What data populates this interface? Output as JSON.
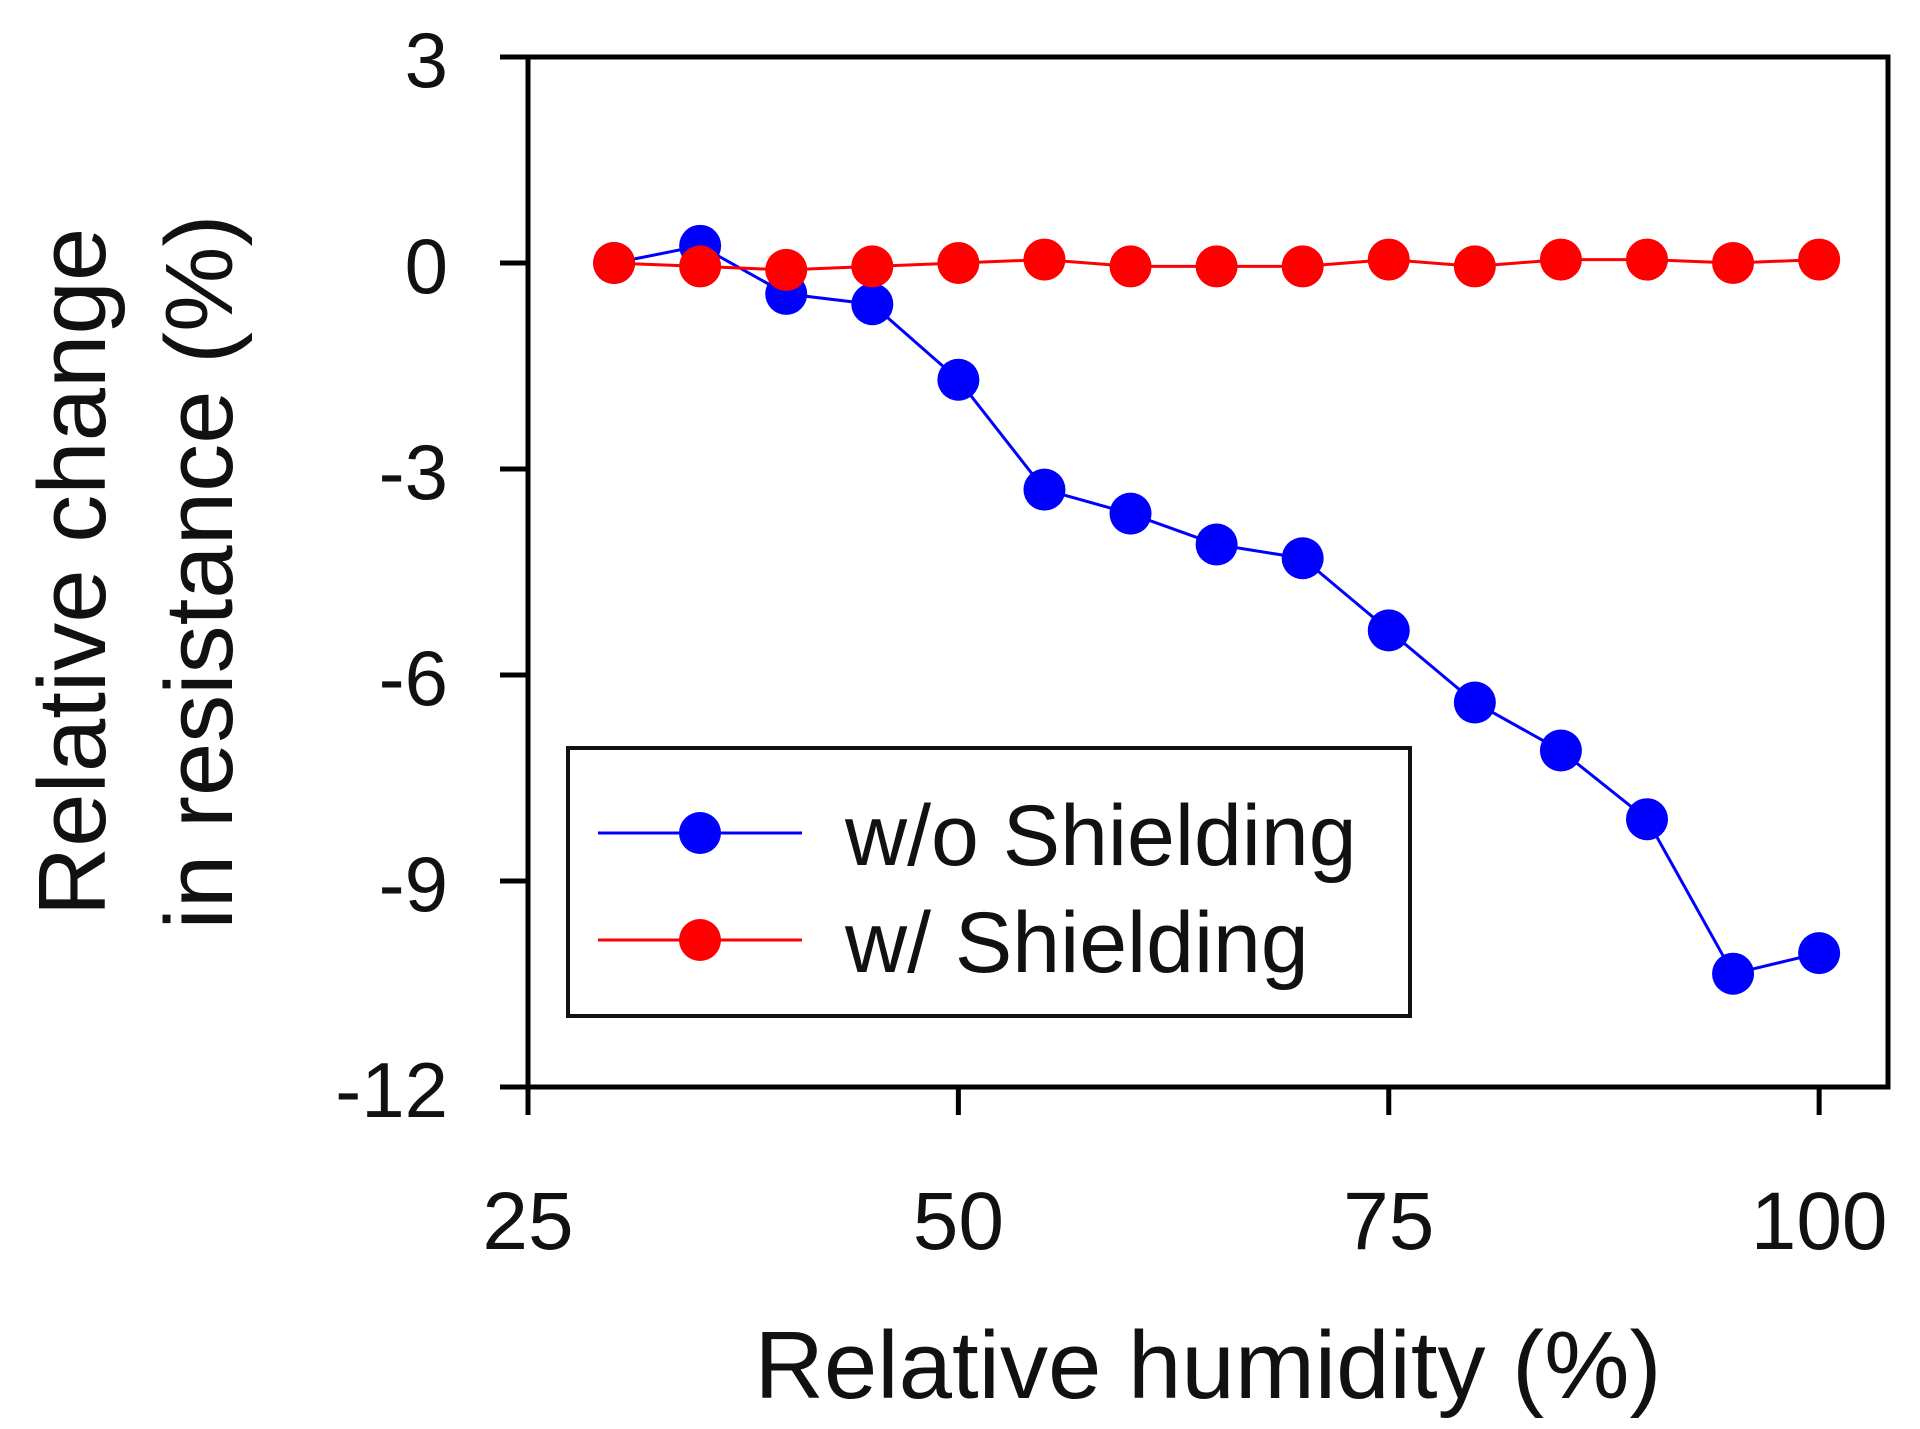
{
  "chart_data": {
    "type": "line",
    "title": "",
    "xlabel": "Relative humidity (%)",
    "ylabel_lines": [
      "Relative change",
      "in resistance (%)"
    ],
    "xlim": [
      25,
      104
    ],
    "ylim": [
      -12,
      3
    ],
    "xticks": [
      25,
      50,
      75,
      100
    ],
    "yticks": [
      3,
      0,
      -3,
      -6,
      -9,
      -12
    ],
    "xtick_labels": [
      "25",
      "50",
      "75",
      "100"
    ],
    "ytick_labels": [
      "3",
      "0",
      "-3",
      "-6",
      "-9",
      "-12"
    ],
    "grid": false,
    "legend_position": "lower-left",
    "series": [
      {
        "name": "w/o Shielding",
        "color": "#0000ff",
        "x": [
          30,
          35,
          40,
          45,
          50,
          55,
          60,
          65,
          70,
          75,
          80,
          85,
          90,
          95,
          100
        ],
        "y": [
          0,
          0.25,
          -0.45,
          -0.6,
          -1.7,
          -3.3,
          -3.65,
          -4.1,
          -4.3,
          -5.35,
          -6.4,
          -7.1,
          -8.1,
          -10.35,
          -10.05
        ]
      },
      {
        "name": "w/ Shielding",
        "color": "#ff0000",
        "x": [
          30,
          35,
          40,
          45,
          50,
          55,
          60,
          65,
          70,
          75,
          80,
          85,
          90,
          95,
          100
        ],
        "y": [
          0,
          -0.05,
          -0.1,
          -0.05,
          0,
          0.05,
          -0.05,
          -0.05,
          -0.05,
          0.05,
          -0.05,
          0.05,
          0.05,
          0,
          0.05
        ]
      }
    ]
  }
}
